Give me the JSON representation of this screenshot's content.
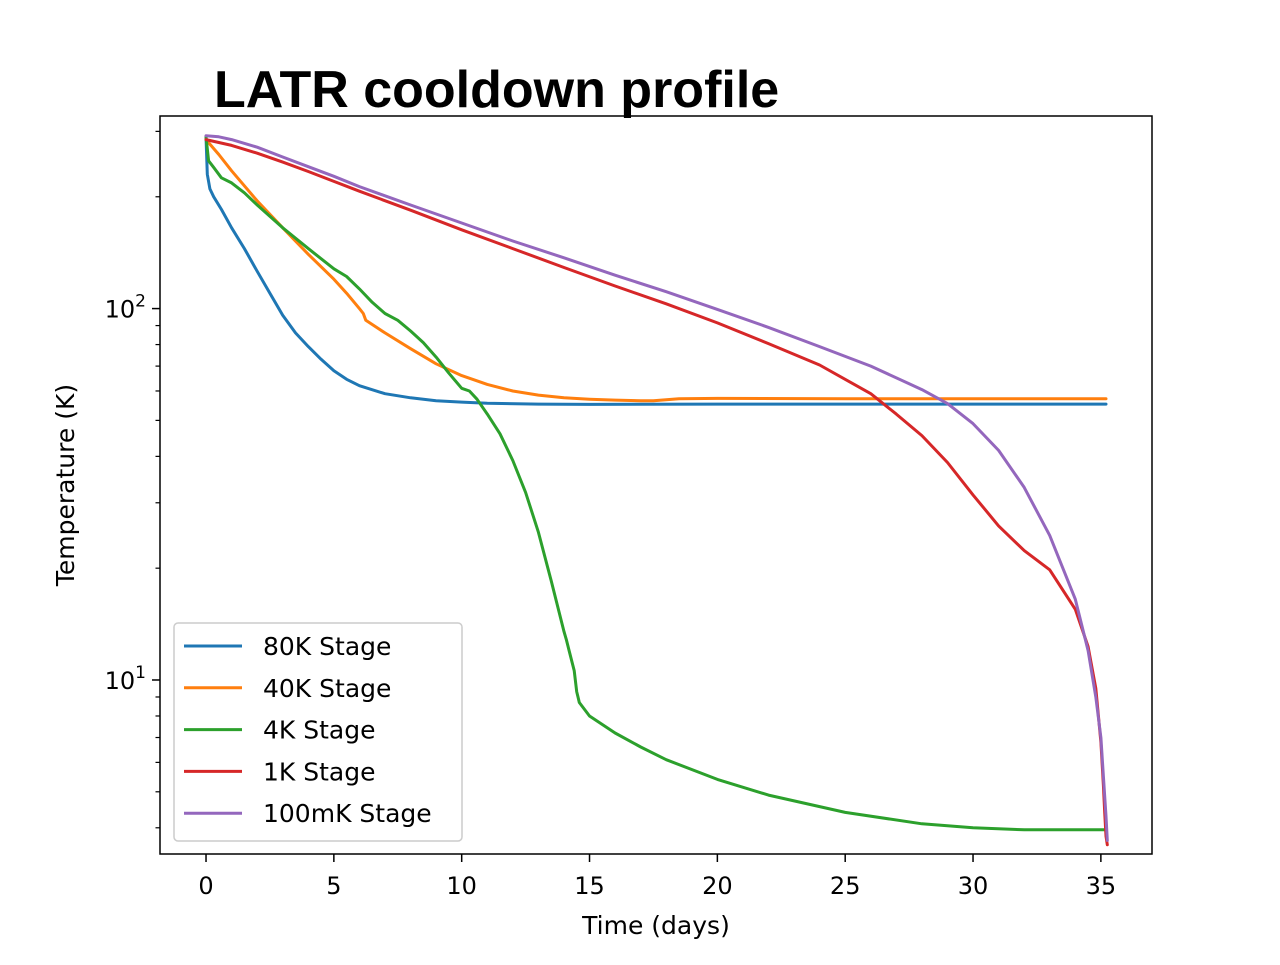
{
  "chart_data": {
    "type": "line",
    "title": "LATR cooldown profile",
    "xlabel": "Time (days)",
    "ylabel": "Temperature (K)",
    "yscale": "log",
    "xlim": [
      -1.8,
      37
    ],
    "ylim": [
      3.4,
      330
    ],
    "xticks": [
      0,
      5,
      10,
      15,
      20,
      25,
      30,
      35
    ],
    "xtick_labels": [
      "0",
      "5",
      "10",
      "15",
      "20",
      "25",
      "30",
      "35"
    ],
    "yticks_major": [
      10,
      100
    ],
    "ytick_labels": [
      {
        "base": "10",
        "exp": "1"
      },
      {
        "base": "10",
        "exp": "2"
      }
    ],
    "legend_position": "lower-left",
    "series": [
      {
        "name": "80K Stage",
        "color": "#1f77b4",
        "x": [
          0,
          0.05,
          0.15,
          0.3,
          0.6,
          1.0,
          1.5,
          2.0,
          2.5,
          3.0,
          3.5,
          4.0,
          4.5,
          5.0,
          5.5,
          6.0,
          7.0,
          8.0,
          9.0,
          10.0,
          11.0,
          13.0,
          15.0,
          20.0,
          25.0,
          30.0,
          35.2
        ],
        "y": [
          290,
          230,
          210,
          200,
          185,
          165,
          145,
          126,
          110,
          96,
          86,
          79,
          73,
          68,
          64.5,
          62,
          59,
          57.5,
          56.5,
          56,
          55.6,
          55.3,
          55.2,
          55.3,
          55.3,
          55.3,
          55.3
        ]
      },
      {
        "name": "40K Stage",
        "color": "#ff7f0e",
        "x": [
          0,
          0.5,
          1.0,
          2.0,
          3.0,
          4.0,
          5.0,
          5.5,
          6.0,
          6.15,
          6.25,
          7.0,
          8.0,
          9.0,
          10.0,
          11.0,
          12.0,
          13.0,
          14.0,
          15.0,
          16.0,
          17.0,
          17.5,
          18.5,
          20.0,
          25.0,
          30.0,
          35.2
        ],
        "y": [
          285,
          260,
          235,
          195,
          165,
          140,
          120,
          110,
          100,
          97,
          93,
          86,
          78,
          71,
          66,
          62.5,
          60,
          58.5,
          57.5,
          57,
          56.7,
          56.5,
          56.5,
          57.2,
          57.3,
          57.2,
          57.2,
          57.2
        ]
      },
      {
        "name": "4K Stage",
        "color": "#2ca02c",
        "x": [
          0,
          0.1,
          0.3,
          0.6,
          1.0,
          1.5,
          2.0,
          3.0,
          4.0,
          5.0,
          5.5,
          6.0,
          6.5,
          7.0,
          7.5,
          8.0,
          8.5,
          9.0,
          9.5,
          10.0,
          10.3,
          10.6,
          11.0,
          11.5,
          12.0,
          12.5,
          13.0,
          13.5,
          14.0,
          14.1,
          14.2,
          14.4,
          14.5,
          14.55,
          14.6,
          15.0,
          16.0,
          17.0,
          18.0,
          20.0,
          22.0,
          25.0,
          28.0,
          30.0,
          32.0,
          35.2
        ],
        "y": [
          290,
          250,
          240,
          225,
          218,
          205,
          190,
          165,
          145,
          128,
          122,
          113,
          104,
          97,
          93,
          87,
          81,
          74,
          67,
          61,
          60,
          57,
          52,
          46,
          39,
          32,
          25,
          18.5,
          13.5,
          12.8,
          12,
          10.6,
          9.3,
          9,
          8.7,
          8.0,
          7.2,
          6.6,
          6.1,
          5.4,
          4.9,
          4.4,
          4.1,
          4.0,
          3.95,
          3.95
        ]
      },
      {
        "name": "1K Stage",
        "color": "#d62728",
        "x": [
          0,
          0.5,
          1.0,
          2.0,
          3.0,
          4.0,
          5.0,
          6.0,
          8.0,
          10.0,
          12.0,
          14.0,
          16.0,
          18.0,
          20.0,
          22.0,
          24.0,
          26.0,
          27.0,
          28.0,
          29.0,
          30.0,
          31.0,
          32.0,
          33.0,
          34.0,
          34.5,
          34.8,
          35.0,
          35.1,
          35.15,
          35.2,
          35.25
        ],
        "y": [
          285,
          280,
          275,
          262,
          248,
          234,
          220,
          207,
          184,
          163,
          145,
          129,
          115,
          103,
          91.5,
          80.5,
          70.5,
          59,
          52,
          45.5,
          38.5,
          31.5,
          26,
          22.3,
          19.8,
          15.5,
          12.3,
          9.5,
          6.8,
          5.2,
          4.4,
          3.8,
          3.6
        ]
      },
      {
        "name": "100mK Stage",
        "color": "#9467bd",
        "x": [
          0,
          0.5,
          1.0,
          2.0,
          3.0,
          4.0,
          5.0,
          6.0,
          8.0,
          10.0,
          12.0,
          14.0,
          16.0,
          18.0,
          20.0,
          22.0,
          24.0,
          26.0,
          28.0,
          29.0,
          30.0,
          31.0,
          32.0,
          33.0,
          34.0,
          34.5,
          34.8,
          35.0,
          35.1,
          35.2,
          35.25
        ],
        "y": [
          292,
          290,
          285,
          272,
          256,
          241,
          227,
          213,
          190,
          170,
          152,
          137,
          123,
          111,
          99.5,
          89,
          79,
          70,
          60.5,
          55.5,
          49,
          41.5,
          33,
          24.5,
          16.5,
          12,
          9.0,
          7.0,
          5.5,
          4.3,
          3.7
        ]
      }
    ]
  }
}
